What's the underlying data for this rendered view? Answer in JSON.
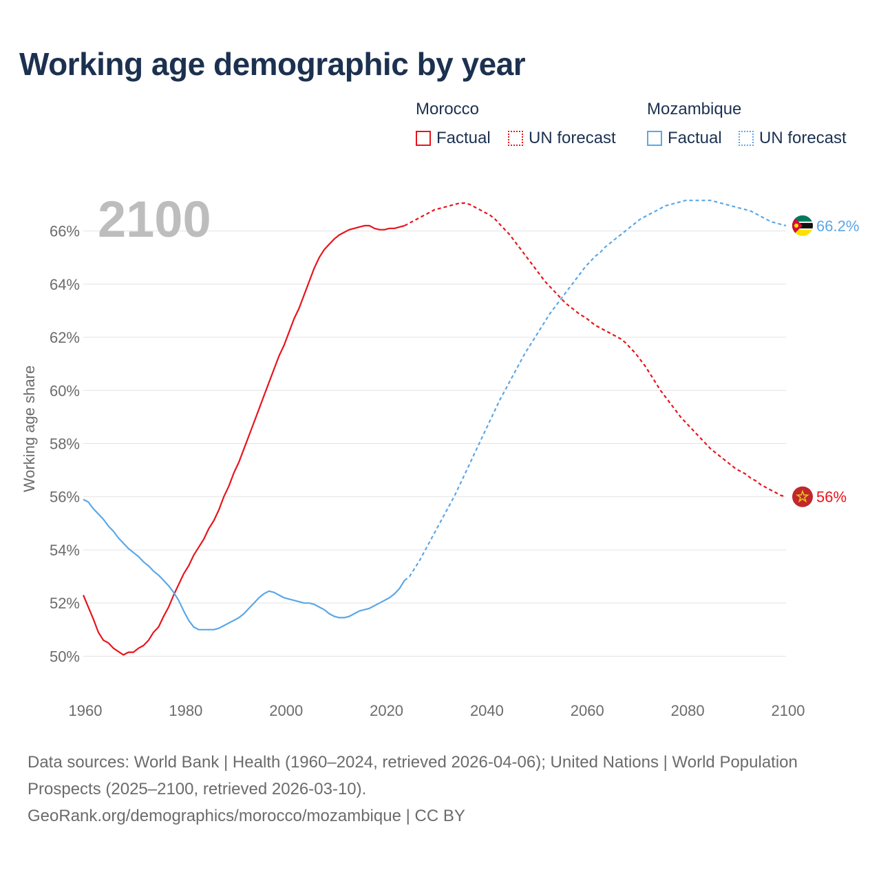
{
  "title": "Working age demographic by year",
  "legend": {
    "groups": [
      {
        "name": "Morocco",
        "factual": "Factual",
        "forecast": "UN forecast",
        "color": "#e8141b"
      },
      {
        "name": "Mozambique",
        "factual": "Factual",
        "forecast": "UN forecast",
        "color": "#5aa7e8"
      }
    ]
  },
  "footer": {
    "line1": "Data sources: World Bank | Health (1960–2024, retrieved 2026-04-06); United Nations | World Population Prospects (2025–2100, retrieved 2026-03-10).",
    "line2": "GeoRank.org/demographics/morocco/mozambique | CC BY"
  },
  "chart_data": {
    "type": "line",
    "title": "Working age demographic by year",
    "xlabel": "",
    "ylabel": "Working age share",
    "current_year_label": "2100",
    "xlim": [
      1960,
      2100
    ],
    "ylim": [
      49,
      67
    ],
    "x_ticks": [
      1960,
      1980,
      2000,
      2020,
      2040,
      2060,
      2080,
      2100
    ],
    "y_ticks": [
      50,
      52,
      54,
      56,
      58,
      60,
      62,
      64,
      66
    ],
    "y_tick_labels": [
      "50%",
      "52%",
      "54%",
      "56%",
      "58%",
      "60%",
      "62%",
      "64%",
      "66%"
    ],
    "factual_end_year": 2024,
    "series": [
      {
        "name": "Morocco",
        "color": "#e8141b",
        "end_label": "56%",
        "flag": "morocco-flag",
        "points": [
          [
            1960,
            52.3
          ],
          [
            1962,
            51.4
          ],
          [
            1963,
            50.9
          ],
          [
            1964,
            50.6
          ],
          [
            1965,
            50.5
          ],
          [
            1966,
            50.3
          ],
          [
            1968,
            50.05
          ],
          [
            1969,
            50.15
          ],
          [
            1970,
            50.15
          ],
          [
            1971,
            50.3
          ],
          [
            1972,
            50.4
          ],
          [
            1973,
            50.6
          ],
          [
            1974,
            50.9
          ],
          [
            1975,
            51.1
          ],
          [
            1976,
            51.5
          ],
          [
            1977,
            51.85
          ],
          [
            1978,
            52.3
          ],
          [
            1979,
            52.7
          ],
          [
            1980,
            53.1
          ],
          [
            1981,
            53.4
          ],
          [
            1982,
            53.8
          ],
          [
            1983,
            54.1
          ],
          [
            1984,
            54.4
          ],
          [
            1985,
            54.8
          ],
          [
            1986,
            55.1
          ],
          [
            1987,
            55.5
          ],
          [
            1988,
            56.0
          ],
          [
            1989,
            56.4
          ],
          [
            1990,
            56.9
          ],
          [
            1991,
            57.3
          ],
          [
            1992,
            57.8
          ],
          [
            1993,
            58.3
          ],
          [
            1994,
            58.8
          ],
          [
            1995,
            59.3
          ],
          [
            1996,
            59.8
          ],
          [
            1997,
            60.3
          ],
          [
            1998,
            60.8
          ],
          [
            1999,
            61.3
          ],
          [
            2000,
            61.7
          ],
          [
            2001,
            62.2
          ],
          [
            2002,
            62.7
          ],
          [
            2003,
            63.1
          ],
          [
            2004,
            63.6
          ],
          [
            2005,
            64.1
          ],
          [
            2006,
            64.6
          ],
          [
            2007,
            65.0
          ],
          [
            2008,
            65.3
          ],
          [
            2009,
            65.5
          ],
          [
            2010,
            65.7
          ],
          [
            2011,
            65.85
          ],
          [
            2012,
            65.95
          ],
          [
            2013,
            66.05
          ],
          [
            2014,
            66.1
          ],
          [
            2015,
            66.15
          ],
          [
            2016,
            66.2
          ],
          [
            2017,
            66.2
          ],
          [
            2018,
            66.1
          ],
          [
            2019,
            66.05
          ],
          [
            2020,
            66.05
          ],
          [
            2021,
            66.1
          ],
          [
            2022,
            66.1
          ],
          [
            2023,
            66.15
          ],
          [
            2024,
            66.2
          ],
          [
            2025,
            66.3
          ],
          [
            2026,
            66.4
          ],
          [
            2027,
            66.5
          ],
          [
            2028,
            66.6
          ],
          [
            2029,
            66.7
          ],
          [
            2030,
            66.8
          ],
          [
            2031,
            66.85
          ],
          [
            2032,
            66.9
          ],
          [
            2033,
            66.95
          ],
          [
            2034,
            67.0
          ],
          [
            2035,
            67.05
          ],
          [
            2036,
            67.05
          ],
          [
            2037,
            67.0
          ],
          [
            2038,
            66.9
          ],
          [
            2039,
            66.8
          ],
          [
            2040,
            66.7
          ],
          [
            2041,
            66.6
          ],
          [
            2042,
            66.45
          ],
          [
            2043,
            66.25
          ],
          [
            2044,
            66.05
          ],
          [
            2045,
            65.85
          ],
          [
            2046,
            65.6
          ],
          [
            2047,
            65.35
          ],
          [
            2048,
            65.1
          ],
          [
            2049,
            64.85
          ],
          [
            2050,
            64.6
          ],
          [
            2051,
            64.35
          ],
          [
            2052,
            64.1
          ],
          [
            2053,
            63.9
          ],
          [
            2054,
            63.7
          ],
          [
            2055,
            63.5
          ],
          [
            2056,
            63.3
          ],
          [
            2057,
            63.15
          ],
          [
            2058,
            63.0
          ],
          [
            2059,
            62.85
          ],
          [
            2060,
            62.75
          ],
          [
            2061,
            62.6
          ],
          [
            2062,
            62.45
          ],
          [
            2063,
            62.35
          ],
          [
            2064,
            62.25
          ],
          [
            2065,
            62.15
          ],
          [
            2066,
            62.05
          ],
          [
            2067,
            61.95
          ],
          [
            2068,
            61.8
          ],
          [
            2069,
            61.6
          ],
          [
            2070,
            61.4
          ],
          [
            2071,
            61.15
          ],
          [
            2072,
            60.9
          ],
          [
            2073,
            60.6
          ],
          [
            2074,
            60.3
          ],
          [
            2075,
            60.0
          ],
          [
            2076,
            59.75
          ],
          [
            2077,
            59.5
          ],
          [
            2078,
            59.25
          ],
          [
            2079,
            59.0
          ],
          [
            2080,
            58.8
          ],
          [
            2081,
            58.6
          ],
          [
            2082,
            58.4
          ],
          [
            2083,
            58.2
          ],
          [
            2084,
            58.0
          ],
          [
            2085,
            57.8
          ],
          [
            2086,
            57.65
          ],
          [
            2087,
            57.5
          ],
          [
            2088,
            57.35
          ],
          [
            2089,
            57.2
          ],
          [
            2090,
            57.05
          ],
          [
            2091,
            56.95
          ],
          [
            2092,
            56.85
          ],
          [
            2093,
            56.7
          ],
          [
            2094,
            56.6
          ],
          [
            2095,
            56.45
          ],
          [
            2096,
            56.35
          ],
          [
            2097,
            56.25
          ],
          [
            2098,
            56.15
          ],
          [
            2099,
            56.05
          ],
          [
            2100,
            56.0
          ]
        ]
      },
      {
        "name": "Mozambique",
        "color": "#5aa7e8",
        "end_label": "66.2%",
        "flag": "mozambique-flag",
        "points": [
          [
            1960,
            55.9
          ],
          [
            1961,
            55.8
          ],
          [
            1962,
            55.55
          ],
          [
            1963,
            55.35
          ],
          [
            1964,
            55.15
          ],
          [
            1965,
            54.9
          ],
          [
            1966,
            54.7
          ],
          [
            1967,
            54.45
          ],
          [
            1968,
            54.25
          ],
          [
            1969,
            54.05
          ],
          [
            1970,
            53.9
          ],
          [
            1971,
            53.75
          ],
          [
            1972,
            53.55
          ],
          [
            1973,
            53.4
          ],
          [
            1974,
            53.2
          ],
          [
            1975,
            53.05
          ],
          [
            1976,
            52.85
          ],
          [
            1977,
            52.65
          ],
          [
            1978,
            52.4
          ],
          [
            1979,
            52.1
          ],
          [
            1980,
            51.7
          ],
          [
            1981,
            51.35
          ],
          [
            1982,
            51.1
          ],
          [
            1983,
            51.0
          ],
          [
            1984,
            51.0
          ],
          [
            1985,
            51.0
          ],
          [
            1986,
            51.0
          ],
          [
            1987,
            51.05
          ],
          [
            1988,
            51.15
          ],
          [
            1989,
            51.25
          ],
          [
            1990,
            51.35
          ],
          [
            1991,
            51.45
          ],
          [
            1992,
            51.6
          ],
          [
            1993,
            51.8
          ],
          [
            1994,
            52.0
          ],
          [
            1995,
            52.2
          ],
          [
            1996,
            52.35
          ],
          [
            1997,
            52.45
          ],
          [
            1998,
            52.4
          ],
          [
            1999,
            52.3
          ],
          [
            2000,
            52.2
          ],
          [
            2001,
            52.15
          ],
          [
            2002,
            52.1
          ],
          [
            2003,
            52.05
          ],
          [
            2004,
            52.0
          ],
          [
            2005,
            52.0
          ],
          [
            2006,
            51.95
          ],
          [
            2007,
            51.85
          ],
          [
            2008,
            51.75
          ],
          [
            2009,
            51.6
          ],
          [
            2010,
            51.5
          ],
          [
            2011,
            51.45
          ],
          [
            2012,
            51.45
          ],
          [
            2013,
            51.5
          ],
          [
            2014,
            51.6
          ],
          [
            2015,
            51.7
          ],
          [
            2016,
            51.75
          ],
          [
            2017,
            51.8
          ],
          [
            2018,
            51.9
          ],
          [
            2019,
            52.0
          ],
          [
            2020,
            52.1
          ],
          [
            2021,
            52.2
          ],
          [
            2022,
            52.35
          ],
          [
            2023,
            52.55
          ],
          [
            2024,
            52.85
          ],
          [
            2025,
            53.0
          ],
          [
            2026,
            53.3
          ],
          [
            2027,
            53.6
          ],
          [
            2028,
            53.95
          ],
          [
            2029,
            54.3
          ],
          [
            2030,
            54.65
          ],
          [
            2031,
            55.0
          ],
          [
            2032,
            55.35
          ],
          [
            2033,
            55.7
          ],
          [
            2034,
            56.05
          ],
          [
            2035,
            56.45
          ],
          [
            2036,
            56.85
          ],
          [
            2037,
            57.25
          ],
          [
            2038,
            57.65
          ],
          [
            2039,
            58.05
          ],
          [
            2040,
            58.45
          ],
          [
            2041,
            58.85
          ],
          [
            2042,
            59.25
          ],
          [
            2043,
            59.65
          ],
          [
            2044,
            60.0
          ],
          [
            2045,
            60.35
          ],
          [
            2046,
            60.7
          ],
          [
            2047,
            61.05
          ],
          [
            2048,
            61.4
          ],
          [
            2049,
            61.7
          ],
          [
            2050,
            62.0
          ],
          [
            2051,
            62.3
          ],
          [
            2052,
            62.6
          ],
          [
            2053,
            62.9
          ],
          [
            2054,
            63.15
          ],
          [
            2055,
            63.4
          ],
          [
            2056,
            63.65
          ],
          [
            2057,
            63.9
          ],
          [
            2058,
            64.15
          ],
          [
            2059,
            64.4
          ],
          [
            2060,
            64.65
          ],
          [
            2061,
            64.85
          ],
          [
            2062,
            65.05
          ],
          [
            2063,
            65.2
          ],
          [
            2064,
            65.4
          ],
          [
            2065,
            65.55
          ],
          [
            2066,
            65.7
          ],
          [
            2067,
            65.85
          ],
          [
            2068,
            66.0
          ],
          [
            2069,
            66.15
          ],
          [
            2070,
            66.3
          ],
          [
            2071,
            66.45
          ],
          [
            2072,
            66.55
          ],
          [
            2073,
            66.65
          ],
          [
            2074,
            66.75
          ],
          [
            2075,
            66.85
          ],
          [
            2076,
            66.95
          ],
          [
            2077,
            67.0
          ],
          [
            2078,
            67.05
          ],
          [
            2079,
            67.1
          ],
          [
            2080,
            67.15
          ],
          [
            2081,
            67.15
          ],
          [
            2082,
            67.15
          ],
          [
            2083,
            67.15
          ],
          [
            2084,
            67.15
          ],
          [
            2085,
            67.15
          ],
          [
            2086,
            67.1
          ],
          [
            2087,
            67.05
          ],
          [
            2088,
            67.0
          ],
          [
            2089,
            66.95
          ],
          [
            2090,
            66.9
          ],
          [
            2091,
            66.85
          ],
          [
            2092,
            66.8
          ],
          [
            2093,
            66.75
          ],
          [
            2094,
            66.65
          ],
          [
            2095,
            66.55
          ],
          [
            2096,
            66.45
          ],
          [
            2097,
            66.35
          ],
          [
            2098,
            66.3
          ],
          [
            2099,
            66.25
          ],
          [
            2100,
            66.2
          ]
        ]
      }
    ]
  }
}
